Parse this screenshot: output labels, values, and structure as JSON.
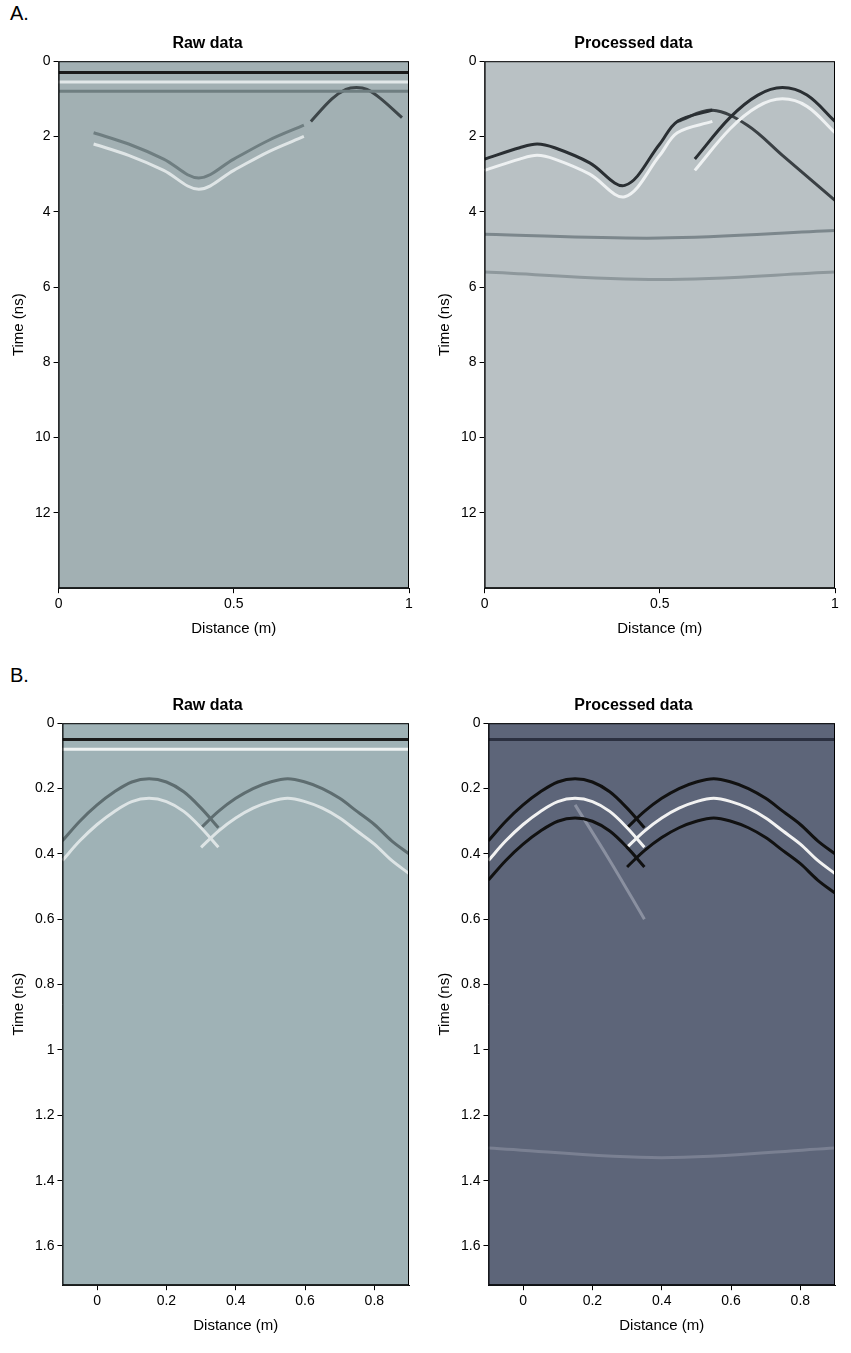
{
  "chart_data": [
    {
      "type": "line",
      "panel": "A.",
      "title": "Raw data",
      "x_label": "Distance (m)",
      "y_label": "Time (ns)",
      "xlim": [
        0,
        1
      ],
      "xticks": [
        0,
        0.5,
        1
      ],
      "ylim": [
        0,
        14
      ],
      "yticks": [
        0,
        2,
        4,
        6,
        8,
        10,
        12
      ],
      "grid": false,
      "series": [
        {
          "color": "#1a1a1a",
          "line_style": "solid",
          "x": [
            0,
            1
          ],
          "values": [
            0.3,
            0.3
          ]
        },
        {
          "color": "#e2e8e9",
          "line_style": "solid",
          "x": [
            0,
            1
          ],
          "values": [
            0.55,
            0.55
          ]
        },
        {
          "color": "#6f7e81",
          "line_style": "solid",
          "x": [
            0,
            1
          ],
          "values": [
            0.8,
            0.8
          ]
        },
        {
          "color": "#6f7e81",
          "line_style": "solid",
          "x": [
            0.1,
            0.2,
            0.3,
            0.4,
            0.5,
            0.6,
            0.7
          ],
          "values": [
            1.9,
            2.2,
            2.6,
            3.1,
            2.6,
            2.1,
            1.7
          ]
        },
        {
          "color": "#dfe5e6",
          "line_style": "solid",
          "x": [
            0.1,
            0.2,
            0.3,
            0.4,
            0.5,
            0.6,
            0.7
          ],
          "values": [
            2.2,
            2.5,
            2.9,
            3.4,
            2.9,
            2.4,
            2.0
          ]
        },
        {
          "color": "#3e4649",
          "line_style": "solid",
          "x": [
            0.72,
            0.78,
            0.82,
            0.85,
            0.88,
            0.92,
            0.98
          ],
          "values": [
            1.6,
            1.0,
            0.75,
            0.7,
            0.75,
            1.0,
            1.5
          ]
        }
      ]
    },
    {
      "type": "line",
      "title": "Processed data",
      "x_label": "Distance (m)",
      "y_label": "Time (ns)",
      "xlim": [
        0,
        1
      ],
      "xticks": [
        0,
        0.5,
        1
      ],
      "ylim": [
        0,
        14
      ],
      "yticks": [
        0,
        2,
        4,
        6,
        8,
        10,
        12
      ],
      "grid": false,
      "series": [
        {
          "color": "#2a2f33",
          "line_style": "solid",
          "x": [
            0,
            0.1,
            0.15,
            0.2,
            0.3,
            0.4,
            0.5,
            0.55,
            0.65
          ],
          "values": [
            2.6,
            2.3,
            2.2,
            2.3,
            2.7,
            3.3,
            2.2,
            1.6,
            1.3
          ]
        },
        {
          "color": "#eef1f2",
          "line_style": "solid",
          "x": [
            0,
            0.1,
            0.15,
            0.2,
            0.3,
            0.4,
            0.5,
            0.55,
            0.65
          ],
          "values": [
            2.9,
            2.6,
            2.5,
            2.6,
            3.0,
            3.6,
            2.5,
            1.9,
            1.6
          ]
        },
        {
          "color": "#2a2f33",
          "line_style": "solid",
          "x": [
            0.6,
            0.7,
            0.78,
            0.85,
            0.92,
            1
          ],
          "values": [
            2.6,
            1.5,
            0.9,
            0.7,
            0.9,
            1.6
          ]
        },
        {
          "color": "#eef1f2",
          "line_style": "solid",
          "x": [
            0.6,
            0.7,
            0.78,
            0.85,
            0.92,
            1
          ],
          "values": [
            2.9,
            1.8,
            1.2,
            1.0,
            1.2,
            1.9
          ]
        },
        {
          "color": "#3a4044",
          "line_style": "solid",
          "x": [
            0.55,
            0.65,
            0.75,
            0.85,
            0.95,
            1
          ],
          "values": [
            1.6,
            1.3,
            1.7,
            2.5,
            3.3,
            3.7
          ]
        },
        {
          "color": "#7c878c",
          "line_style": "solid",
          "x": [
            0,
            0.5,
            1
          ],
          "values": [
            4.6,
            4.7,
            4.5
          ]
        },
        {
          "color": "#8e989c",
          "line_style": "solid",
          "x": [
            0,
            0.5,
            1
          ],
          "values": [
            5.6,
            5.8,
            5.6
          ]
        }
      ]
    },
    {
      "type": "line",
      "panel": "B.",
      "title": "Raw data",
      "x_label": "Distance (m)",
      "y_label": "Time (ns)",
      "xlim": [
        -0.1,
        0.9
      ],
      "xticks": [
        0,
        0.2,
        0.4,
        0.6,
        0.8
      ],
      "ylim": [
        0,
        1.72
      ],
      "yticks": [
        0,
        0.2,
        0.4,
        0.6,
        0.8,
        1,
        1.2,
        1.4,
        1.6
      ],
      "grid": false,
      "series": [
        {
          "color": "#1a1a1a",
          "line_style": "solid",
          "x": [
            -0.1,
            0.9
          ],
          "values": [
            0.05,
            0.05
          ]
        },
        {
          "color": "#eef2f2",
          "line_style": "solid",
          "x": [
            -0.1,
            0.9
          ],
          "values": [
            0.08,
            0.08
          ]
        },
        {
          "color": "#5e6d70",
          "line_style": "solid",
          "x": [
            -0.1,
            -0.05,
            0,
            0.05,
            0.1,
            0.15,
            0.2,
            0.25,
            0.3,
            0.35
          ],
          "values": [
            0.36,
            0.3,
            0.25,
            0.21,
            0.18,
            0.17,
            0.18,
            0.21,
            0.26,
            0.32
          ]
        },
        {
          "color": "#dde4e5",
          "line_style": "solid",
          "x": [
            -0.1,
            -0.05,
            0,
            0.05,
            0.1,
            0.15,
            0.2,
            0.25,
            0.3,
            0.35
          ],
          "values": [
            0.42,
            0.36,
            0.31,
            0.27,
            0.24,
            0.23,
            0.24,
            0.27,
            0.32,
            0.38
          ]
        },
        {
          "color": "#5e6d70",
          "line_style": "solid",
          "x": [
            0.3,
            0.35,
            0.4,
            0.45,
            0.5,
            0.55,
            0.6,
            0.65,
            0.7,
            0.75,
            0.8,
            0.85,
            0.9
          ],
          "values": [
            0.32,
            0.27,
            0.23,
            0.2,
            0.18,
            0.17,
            0.18,
            0.2,
            0.23,
            0.27,
            0.31,
            0.36,
            0.4
          ]
        },
        {
          "color": "#dde4e5",
          "line_style": "solid",
          "x": [
            0.3,
            0.35,
            0.4,
            0.45,
            0.5,
            0.55,
            0.6,
            0.65,
            0.7,
            0.75,
            0.8,
            0.85,
            0.9
          ],
          "values": [
            0.38,
            0.33,
            0.29,
            0.26,
            0.24,
            0.23,
            0.24,
            0.26,
            0.29,
            0.33,
            0.37,
            0.42,
            0.46
          ]
        }
      ]
    },
    {
      "type": "line",
      "title": "Processed data",
      "x_label": "Distance (m)",
      "y_label": "Time (ns)",
      "xlim": [
        -0.1,
        0.9
      ],
      "xticks": [
        0,
        0.2,
        0.4,
        0.6,
        0.8
      ],
      "ylim": [
        0,
        1.72
      ],
      "yticks": [
        0,
        0.2,
        0.4,
        0.6,
        0.8,
        1,
        1.2,
        1.4,
        1.6
      ],
      "grid": false,
      "series": [
        {
          "color": "#2b3040",
          "line_style": "solid",
          "x": [
            -0.1,
            0.9
          ],
          "values": [
            0.05,
            0.05
          ]
        },
        {
          "color": "#111111",
          "line_style": "solid",
          "x": [
            -0.1,
            -0.05,
            0,
            0.05,
            0.1,
            0.15,
            0.2,
            0.25,
            0.3,
            0.35
          ],
          "values": [
            0.36,
            0.3,
            0.25,
            0.21,
            0.18,
            0.17,
            0.18,
            0.21,
            0.26,
            0.32
          ]
        },
        {
          "color": "#f2f2f2",
          "line_style": "solid",
          "x": [
            -0.1,
            -0.05,
            0,
            0.05,
            0.1,
            0.15,
            0.2,
            0.25,
            0.3,
            0.35
          ],
          "values": [
            0.42,
            0.36,
            0.31,
            0.27,
            0.24,
            0.23,
            0.24,
            0.27,
            0.32,
            0.38
          ]
        },
        {
          "color": "#111111",
          "line_style": "solid",
          "x": [
            -0.1,
            -0.05,
            0,
            0.05,
            0.1,
            0.15,
            0.2,
            0.25,
            0.3,
            0.35
          ],
          "values": [
            0.48,
            0.42,
            0.37,
            0.33,
            0.3,
            0.29,
            0.3,
            0.33,
            0.38,
            0.44
          ]
        },
        {
          "color": "#111111",
          "line_style": "solid",
          "x": [
            0.3,
            0.35,
            0.4,
            0.45,
            0.5,
            0.55,
            0.6,
            0.65,
            0.7,
            0.75,
            0.8,
            0.85,
            0.9
          ],
          "values": [
            0.32,
            0.27,
            0.23,
            0.2,
            0.18,
            0.17,
            0.18,
            0.2,
            0.23,
            0.27,
            0.31,
            0.36,
            0.4
          ]
        },
        {
          "color": "#f2f2f2",
          "line_style": "solid",
          "x": [
            0.3,
            0.35,
            0.4,
            0.45,
            0.5,
            0.55,
            0.6,
            0.65,
            0.7,
            0.75,
            0.8,
            0.85,
            0.9
          ],
          "values": [
            0.38,
            0.33,
            0.29,
            0.26,
            0.24,
            0.23,
            0.24,
            0.26,
            0.29,
            0.33,
            0.37,
            0.42,
            0.46
          ]
        },
        {
          "color": "#111111",
          "line_style": "solid",
          "x": [
            0.3,
            0.35,
            0.4,
            0.45,
            0.5,
            0.55,
            0.6,
            0.65,
            0.7,
            0.75,
            0.8,
            0.85,
            0.9
          ],
          "values": [
            0.44,
            0.39,
            0.35,
            0.32,
            0.3,
            0.29,
            0.3,
            0.32,
            0.35,
            0.39,
            0.43,
            0.48,
            0.52
          ]
        },
        {
          "color": "#8a90a0",
          "line_style": "solid",
          "x": [
            0.15,
            0.25,
            0.35
          ],
          "values": [
            0.25,
            0.42,
            0.6
          ]
        },
        {
          "color": "#7a8092",
          "line_style": "solid",
          "x": [
            -0.1,
            0.4,
            0.9
          ],
          "values": [
            1.3,
            1.33,
            1.3
          ]
        }
      ]
    }
  ]
}
